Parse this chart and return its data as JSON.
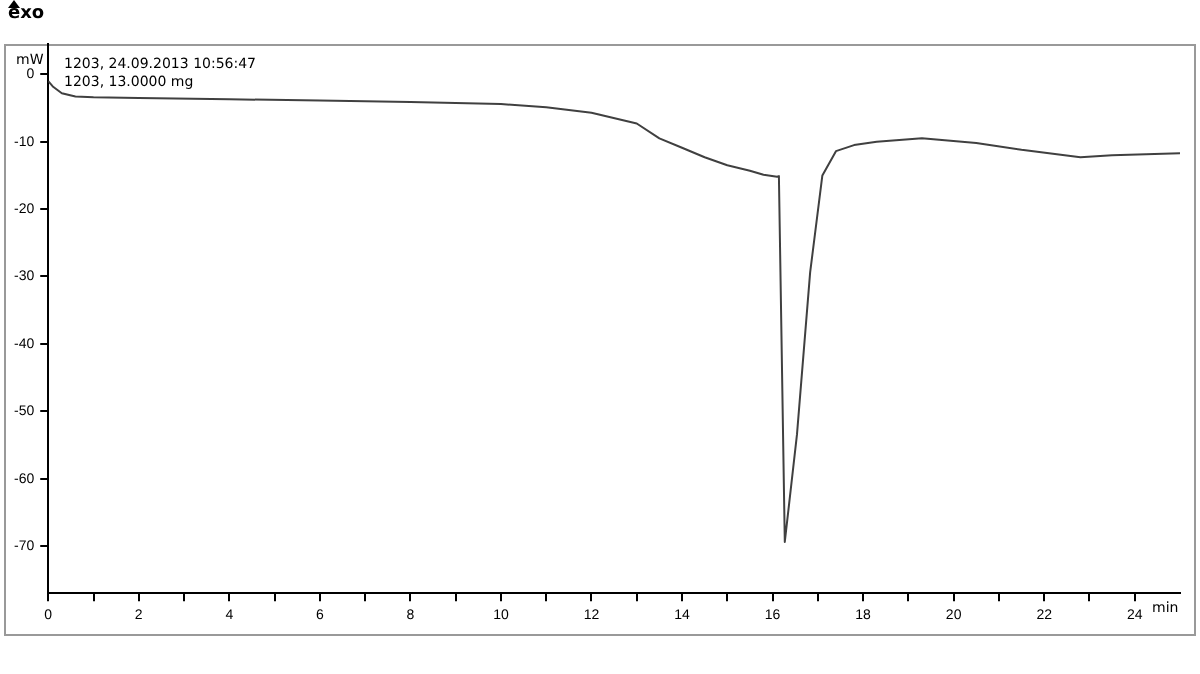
{
  "chart_data": {
    "type": "line",
    "xlabel": "min",
    "ylabel": "mW",
    "annotations": [
      "exo",
      "1203, 24.09.2013 10:56:47",
      "1203, 13.0000 mg"
    ],
    "x": [
      0,
      0.1,
      0.3,
      0.6,
      1,
      2,
      4,
      6,
      8,
      10,
      11,
      12,
      13,
      13.5,
      14,
      14.5,
      15,
      15.5,
      15.8,
      16.1,
      16.14,
      16.27,
      16.54,
      16.83,
      17.1,
      17.4,
      17.8,
      18.3,
      19.3,
      20.5,
      21.5,
      22.8,
      23.5,
      25
    ],
    "series": [
      {
        "color": "#404040",
        "values": [
          -1,
          -1.8,
          -2.8,
          -3.3,
          -3.4,
          -3.5,
          -3.7,
          -3.9,
          -4.1,
          -4.4,
          -4.9,
          -5.7,
          -7.3,
          -9.5,
          -10.9,
          -12.3,
          -13.5,
          -14.3,
          -14.9,
          -15.2,
          -15.1,
          -69.4,
          -53.4,
          -29.4,
          -15,
          -11.4,
          -10.5,
          -10,
          -9.5,
          -10.2,
          -11.2,
          -12.3,
          -12,
          -11.7
        ]
      }
    ],
    "xlim": [
      0,
      25
    ],
    "ylim": [
      -77,
      4.5
    ],
    "xticks": [
      0,
      {
        "value": 1,
        "label": null
      },
      2,
      {
        "value": 3,
        "label": null
      },
      4,
      {
        "value": 5,
        "label": null
      },
      6,
      {
        "value": 7,
        "label": null
      },
      8,
      {
        "value": 9,
        "label": null
      },
      10,
      {
        "value": 11,
        "label": null
      },
      12,
      {
        "value": 13,
        "label": null
      },
      14,
      {
        "value": 15,
        "label": null
      },
      16,
      {
        "value": 17,
        "label": null
      },
      18,
      {
        "value": 19,
        "label": null
      },
      20,
      {
        "value": 21,
        "label": null
      },
      22,
      {
        "value": 23,
        "label": null
      },
      24
    ],
    "yticks": [
      0,
      -10,
      -20,
      -30,
      -40,
      -50,
      -60,
      -70
    ],
    "grid": false,
    "legend": false,
    "marker": "none",
    "line_style": "solid"
  }
}
